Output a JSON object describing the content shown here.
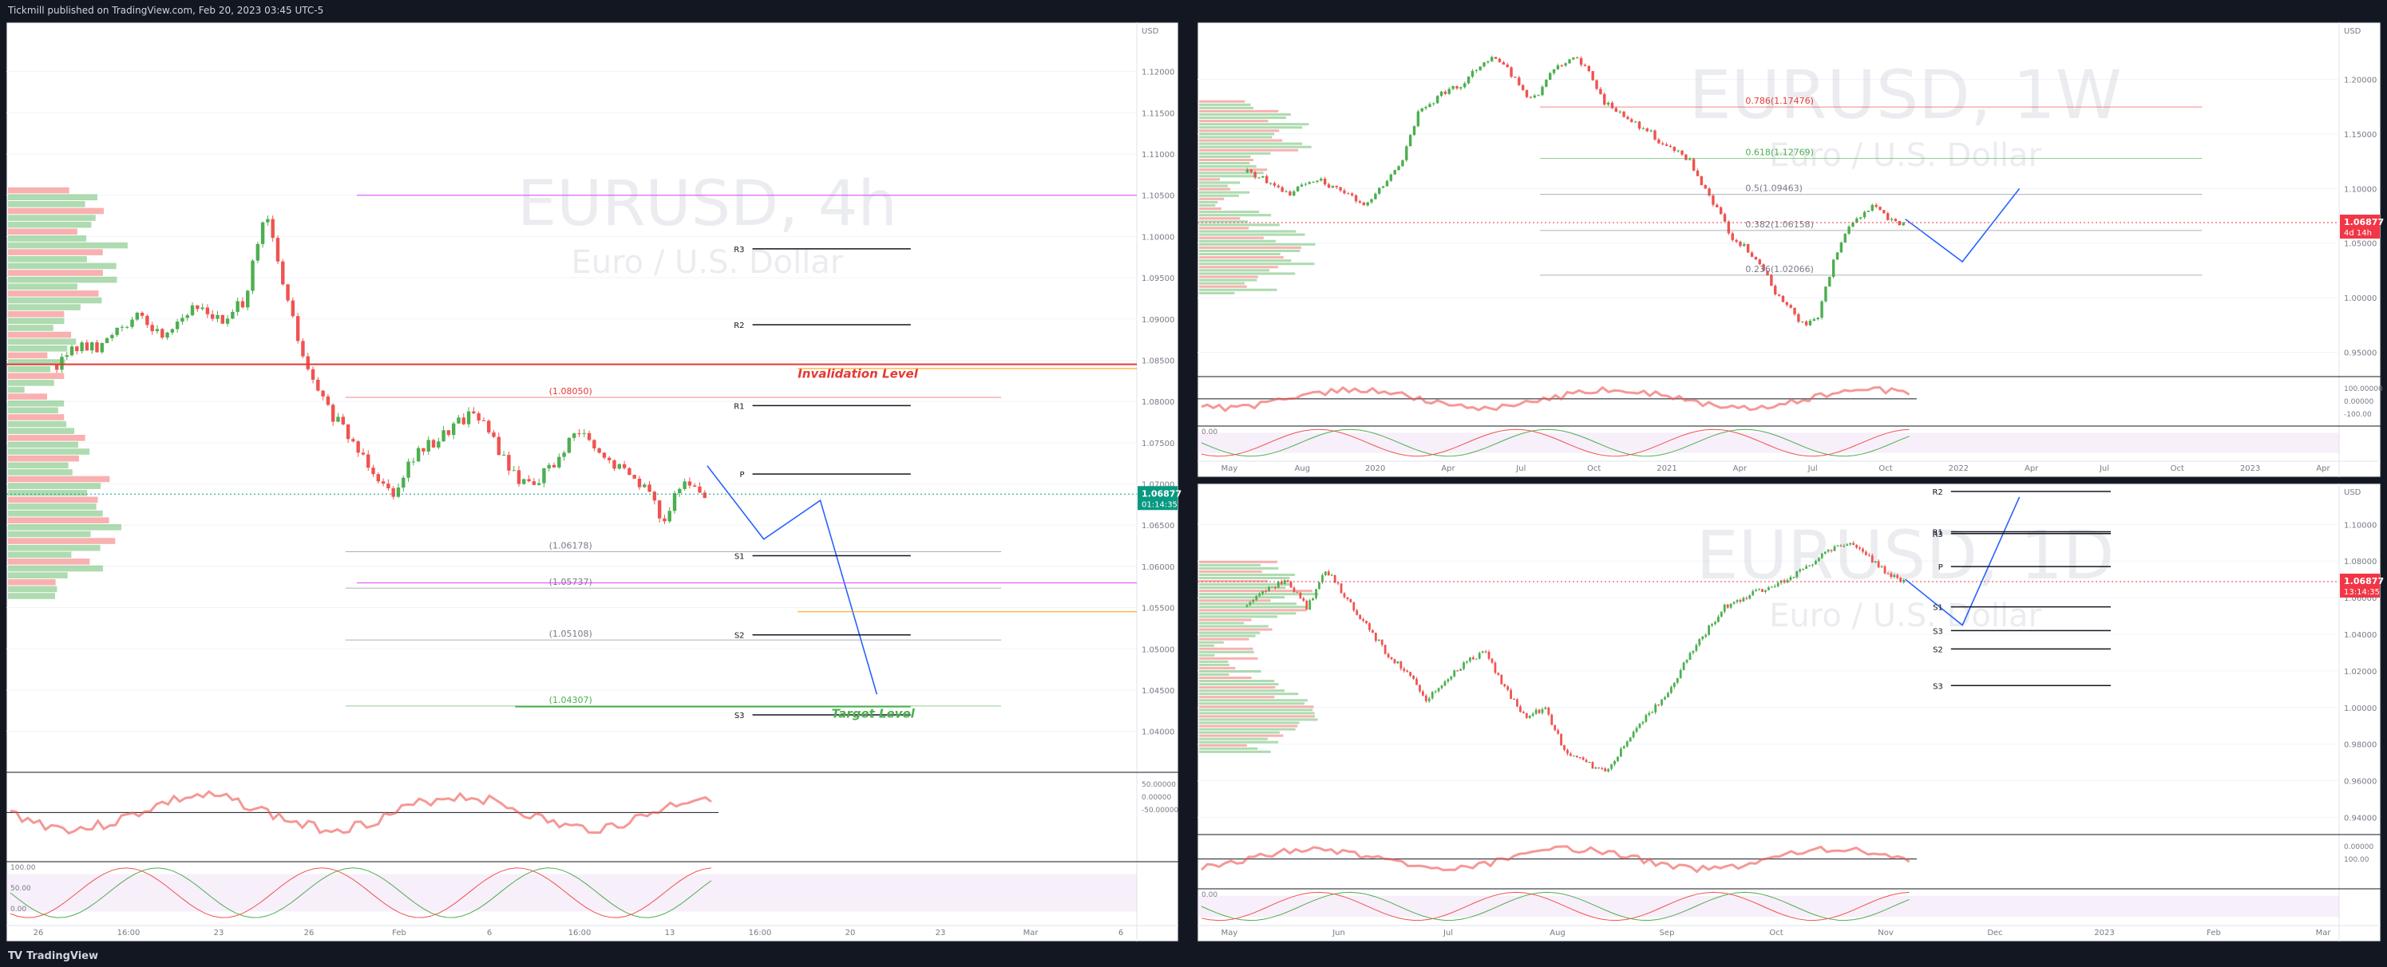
{
  "header": {
    "published_line": "Tickmill published on TradingView.com, Feb 20, 2023 03:45 UTC-5"
  },
  "footer": {
    "brand": "TradingView",
    "logo_glyph": "TV"
  },
  "colors": {
    "background": "#ffffff",
    "up": "#26a69a",
    "down": "#ef5350",
    "up_green": "#4caf50",
    "red_line": "#e53935",
    "magenta": "#e040fb",
    "orange": "#ff9800",
    "blue": "#2962ff",
    "price_green": "#089981",
    "price_red": "#f23645"
  },
  "chart_data": [
    {
      "id": "eurusd-4h",
      "type": "candlestick",
      "watermark_symbol": "EURUSD, 4h",
      "watermark_name": "Euro / U.S. Dollar",
      "currency": "USD",
      "y_ticks": [
        "1.12000",
        "1.11500",
        "1.11000",
        "1.10500",
        "1.10000",
        "1.09500",
        "1.09000",
        "1.08500",
        "1.08000",
        "1.07500",
        "1.07000",
        "1.06500",
        "1.06000",
        "1.05500",
        "1.05000",
        "1.04500",
        "1.04000"
      ],
      "ylim": [
        1.036,
        1.125
      ],
      "x_ticks": [
        "26",
        "16:00",
        "23",
        "26",
        "Feb",
        "6",
        "16:00",
        "13",
        "16:00",
        "20",
        "23",
        "Mar",
        "6"
      ],
      "current_price": "1.06877",
      "countdown": "01:14:35",
      "pivots": [
        {
          "label": "R3",
          "value": 1.0985
        },
        {
          "label": "R2",
          "value": 1.0893
        },
        {
          "label": "R1",
          "value": 1.0795
        },
        {
          "label": "P",
          "value": 1.0712
        },
        {
          "label": "S1",
          "value": 1.0613
        },
        {
          "label": "S2",
          "value": 1.0517
        },
        {
          "label": "S3",
          "value": 1.042
        }
      ],
      "fib_labels": [
        "(1.08050)",
        "(1.06178)",
        "(1.05737)",
        "(1.05108)",
        "(1.04307)"
      ],
      "annotations": [
        "Invalidation Level",
        "Target Level"
      ],
      "close_path": [
        1.0845,
        1.0868,
        1.0862,
        1.0895,
        1.0901,
        1.088,
        1.0905,
        1.0915,
        1.0893,
        1.0925,
        1.1028,
        1.0925,
        1.0835,
        1.079,
        1.0755,
        1.0724,
        1.0688,
        1.0732,
        1.075,
        1.0772,
        1.079,
        1.0748,
        1.0705,
        1.0705,
        1.073,
        1.0765,
        1.0732,
        1.0718,
        1.0702,
        1.0658,
        1.07,
        1.0688
      ],
      "projection": [
        1.0722,
        1.0633,
        1.068,
        1.0445
      ],
      "oscillator_ticks": [
        "50.00000",
        "0.00000",
        "-50.00000"
      ],
      "stoch_ticks": [
        "100.00",
        "50.00",
        "0.00"
      ]
    },
    {
      "id": "eurusd-1w",
      "type": "candlestick",
      "watermark_symbol": "EURUSD, 1W",
      "watermark_name": "Euro / U.S. Dollar",
      "currency": "USD",
      "y_ticks": [
        "1.20000",
        "1.15000",
        "1.10000",
        "1.05000",
        "1.00000",
        "0.95000"
      ],
      "ylim": [
        0.935,
        1.245
      ],
      "x_ticks": [
        "May",
        "Aug",
        "2020",
        "Apr",
        "Jul",
        "Oct",
        "2021",
        "Apr",
        "Jul",
        "Oct",
        "2022",
        "Apr",
        "Jul",
        "Oct",
        "2023",
        "Apr"
      ],
      "current_price": "1.06877",
      "countdown": "4d 14h",
      "fib_labels": [
        "0.786(1.17476)",
        "0.618(1.12769)",
        "0.5(1.09463)",
        "0.382(1.06158)",
        "0.236(1.02066)"
      ],
      "close_path": [
        1.115,
        1.11,
        1.1,
        1.095,
        1.105,
        1.11,
        1.1,
        1.095,
        1.085,
        1.095,
        1.11,
        1.13,
        1.17,
        1.18,
        1.19,
        1.195,
        1.21,
        1.22,
        1.215,
        1.195,
        1.18,
        1.2,
        1.215,
        1.22,
        1.205,
        1.18,
        1.17,
        1.16,
        1.155,
        1.14,
        1.135,
        1.125,
        1.1,
        1.08,
        1.055,
        1.045,
        1.03,
        1.005,
        0.99,
        0.975,
        0.98,
        1.03,
        1.06,
        1.075,
        1.085,
        1.07,
        1.0688
      ],
      "projection": [
        1.072,
        1.033,
        1.1
      ],
      "oscillator_ticks": [
        "100.00000",
        "0.00000",
        "-100.00"
      ],
      "stoch_ticks": [
        "0.00"
      ]
    },
    {
      "id": "eurusd-1d",
      "type": "candlestick",
      "watermark_symbol": "EURUSD, 1D",
      "watermark_name": "Euro / U.S. Dollar",
      "currency": "USD",
      "y_ticks": [
        "1.10000",
        "1.08000",
        "1.06000",
        "1.04000",
        "1.02000",
        "1.00000",
        "0.98000",
        "0.96000",
        "0.94000"
      ],
      "ylim": [
        0.935,
        1.118
      ],
      "x_ticks": [
        "May",
        "Jun",
        "Jul",
        "Aug",
        "Sep",
        "Oct",
        "Nov",
        "Dec",
        "2023",
        "Feb",
        "Mar"
      ],
      "current_price": "1.06877",
      "countdown": "13:14:35",
      "pivots": [
        {
          "label": "R2",
          "value": 1.118
        },
        {
          "label": "R1",
          "value": 1.096
        },
        {
          "label": "R3",
          "value": 1.095
        },
        {
          "label": "P",
          "value": 1.077
        },
        {
          "label": "S1",
          "value": 1.055
        },
        {
          "label": "S3",
          "value": 1.042
        },
        {
          "label": "S2",
          "value": 1.032
        },
        {
          "label": "S3",
          "value": 1.012
        }
      ],
      "close_path": [
        1.055,
        1.065,
        1.07,
        1.055,
        1.075,
        1.06,
        1.045,
        1.03,
        1.02,
        1.005,
        1.015,
        1.025,
        1.03,
        1.01,
        0.995,
        1.0,
        0.975,
        0.97,
        0.965,
        0.98,
        0.995,
        1.005,
        1.025,
        1.04,
        1.055,
        1.06,
        1.065,
        1.07,
        1.075,
        1.085,
        1.09,
        1.085,
        1.075,
        1.0688
      ],
      "projection": [
        1.07,
        1.045,
        1.115
      ],
      "oscillator_ticks": [
        "0.00000",
        "100.00"
      ],
      "stoch_ticks": [
        "0.00"
      ]
    }
  ]
}
